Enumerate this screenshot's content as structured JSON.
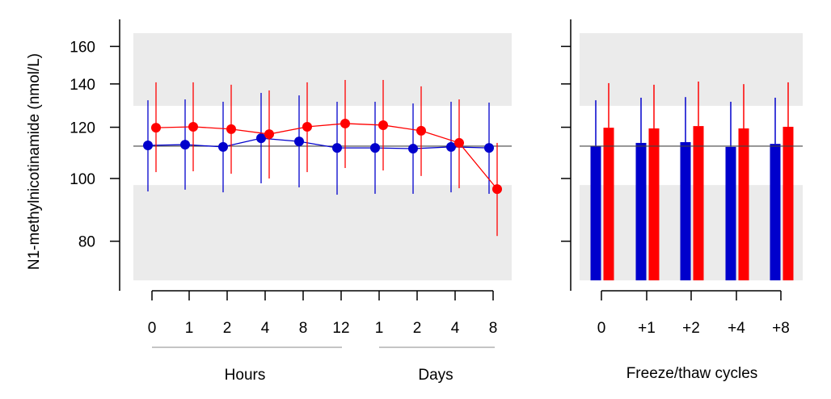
{
  "chart_data": [
    {
      "type": "line",
      "ylabel": "N1-methylnicotinamide (nmol/L)",
      "yscale": "log",
      "yticks": [
        80,
        100,
        120,
        140,
        160
      ],
      "ylim": [
        69.6,
        167.7
      ],
      "reference_line": 112.2,
      "shaded_bands": [
        [
          129.5,
          167.7
        ],
        [
          69.6,
          97.7
        ]
      ],
      "categories": [
        "0",
        "1",
        "2",
        "4",
        "8",
        "12",
        "1",
        "2",
        "4",
        "8"
      ],
      "groups": [
        {
          "label": "Hours",
          "count": 6
        },
        {
          "label": "Days",
          "count": 4
        }
      ],
      "series": [
        {
          "name": "blue",
          "color": "#0000cc",
          "values": [
            112.5,
            112.8,
            111.9,
            115.4,
            114.1,
            111.5,
            111.5,
            111.2,
            111.9,
            111.5
          ],
          "upper": [
            132.1,
            132.5,
            131.4,
            135.6,
            134.4,
            131.4,
            131.4,
            130.6,
            131.4,
            131.0
          ],
          "lower": [
            95.5,
            96.1,
            95.2,
            98.3,
            96.9,
            94.4,
            94.7,
            94.7,
            95.2,
            94.7
          ]
        },
        {
          "name": "red",
          "color": "#ff0000",
          "values": [
            119.8,
            120.2,
            119.2,
            117.1,
            120.2,
            121.6,
            120.9,
            118.5,
            113.5,
            96.3
          ],
          "upper": [
            140.8,
            140.8,
            139.6,
            136.8,
            140.8,
            142.0,
            142.0,
            138.8,
            132.5,
            113.5
          ],
          "lower": [
            102.3,
            102.6,
            101.7,
            100.0,
            102.3,
            103.8,
            102.9,
            100.9,
            96.6,
            81.5
          ]
        }
      ]
    },
    {
      "type": "bar",
      "xlabel": "Freeze/thaw cycles",
      "yscale": "log",
      "ylim": [
        69.6,
        167.7
      ],
      "reference_line": 112.2,
      "shaded_bands": [
        [
          129.5,
          167.7
        ],
        [
          69.6,
          97.7
        ]
      ],
      "categories": [
        "0",
        "+1",
        "+2",
        "+4",
        "+8"
      ],
      "series": [
        {
          "name": "blue",
          "color": "#0000cc",
          "values": [
            112.2,
            113.5,
            113.8,
            111.9,
            113.1
          ],
          "upper": [
            132.1,
            133.3,
            133.6,
            131.4,
            133.3
          ]
        },
        {
          "name": "red",
          "color": "#ff0000",
          "values": [
            119.8,
            119.5,
            120.5,
            119.5,
            120.2
          ],
          "upper": [
            140.4,
            139.6,
            141.2,
            139.9,
            140.8
          ]
        }
      ]
    }
  ]
}
